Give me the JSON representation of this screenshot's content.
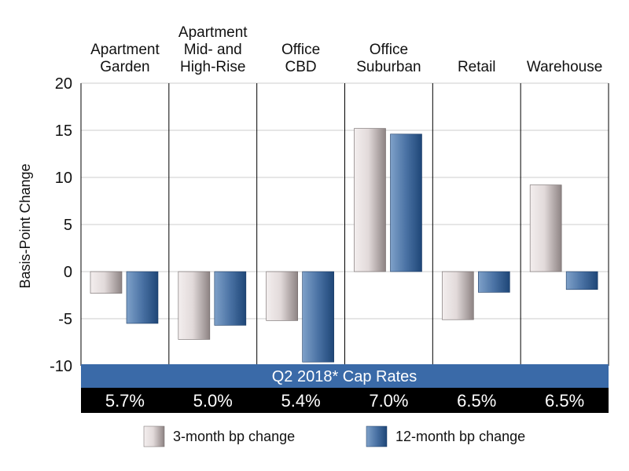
{
  "chart_data": {
    "type": "bar",
    "categories": [
      [
        "Apartment",
        "Garden"
      ],
      [
        "Apartment",
        "Mid- and",
        "High-Rise"
      ],
      [
        "Office",
        "CBD"
      ],
      [
        "Office",
        "Suburban"
      ],
      [
        "Retail"
      ],
      [
        "Warehouse"
      ]
    ],
    "series": [
      {
        "name": "3-month bp change",
        "values": [
          -2.3,
          -7.2,
          -5.2,
          15.2,
          -5.1,
          9.2
        ]
      },
      {
        "name": "12-month bp change",
        "values": [
          -5.5,
          -5.7,
          -9.6,
          14.6,
          -2.2,
          -1.9
        ]
      }
    ],
    "ylabel": "Basis-Point Change",
    "ylim": [
      -10,
      20
    ],
    "yticks": [
      "20",
      "15",
      "10",
      "5",
      "0",
      "-5",
      "-10"
    ],
    "grid": true,
    "legend_position": "bottom",
    "banner_label": "Q2 2018* Cap Rates",
    "cap_rates": [
      "5.7%",
      "5.0%",
      "5.4%",
      "7.0%",
      "6.5%",
      "6.5%"
    ],
    "colors": {
      "series1_light": "#f3eeee",
      "series1_dark": "#8d8383",
      "series2_light": "#7fa1c9",
      "series2_dark": "#1e4677",
      "banner": "#3a6aa8",
      "rates_band": "#000000",
      "grid": "#cccccc",
      "divider": "#000000"
    }
  }
}
